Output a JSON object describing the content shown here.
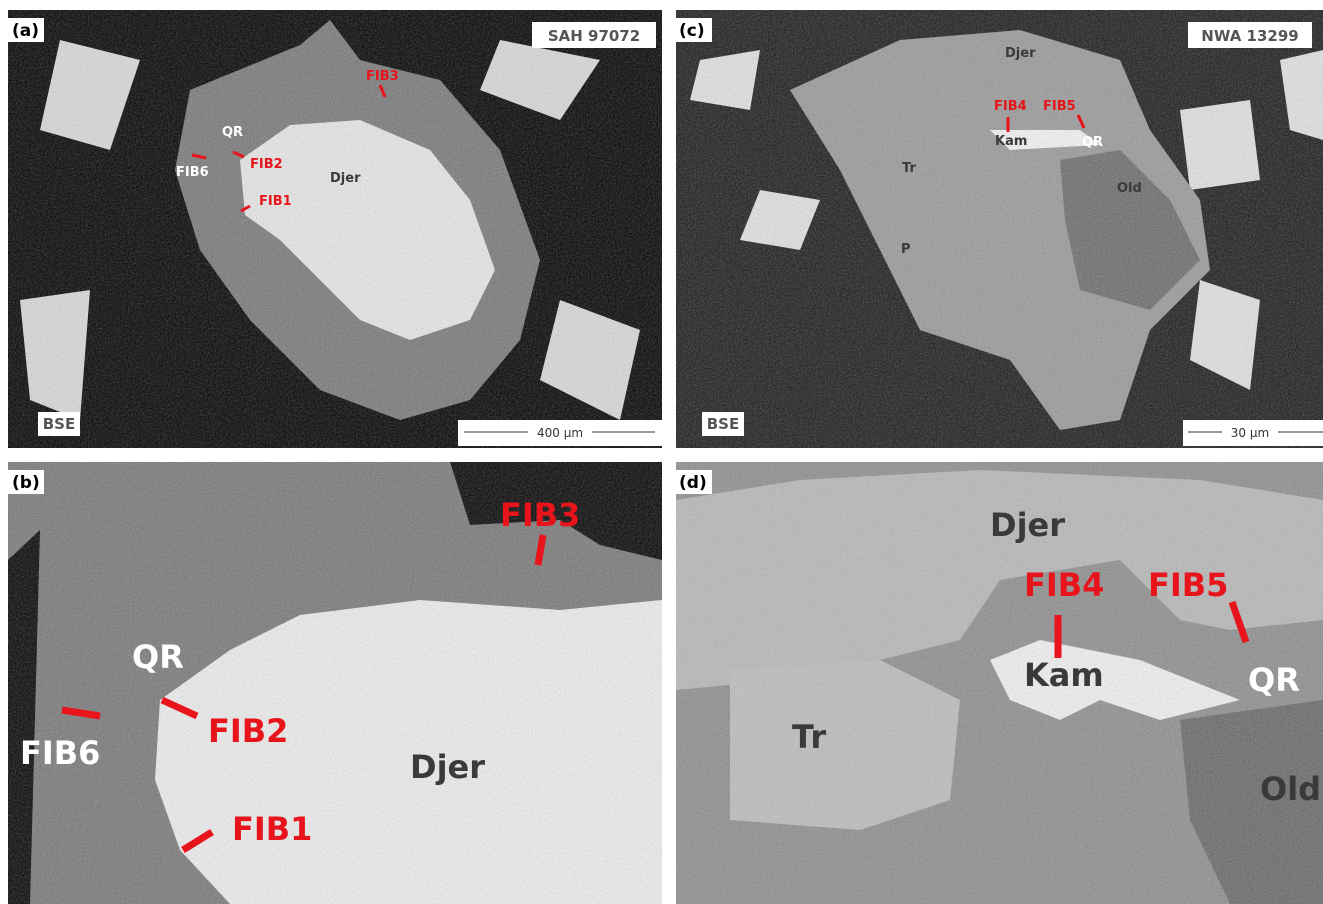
{
  "panels": [
    {
      "label": "(a)",
      "sample": "SAH 97072",
      "detector": "BSE",
      "scale_bar": "400 µm",
      "annotations": [
        "FIB3",
        "QR",
        "FIB2",
        "FIB6",
        "Djer",
        "FIB1"
      ]
    },
    {
      "label": "(b)",
      "annotations": [
        "FIB3",
        "QR",
        "FIB2",
        "FIB6",
        "Djer",
        "FIB1"
      ]
    },
    {
      "label": "(c)",
      "sample": "NWA 13299",
      "detector": "BSE",
      "scale_bar": "30 µm",
      "annotations": [
        "Djer",
        "FIB4",
        "FIB5",
        "Kam",
        "QR",
        "Tr",
        "Old",
        "P"
      ]
    },
    {
      "label": "(d)",
      "annotations": [
        "Djer",
        "FIB4",
        "FIB5",
        "Kam",
        "QR",
        "Tr",
        "Old"
      ]
    }
  ]
}
